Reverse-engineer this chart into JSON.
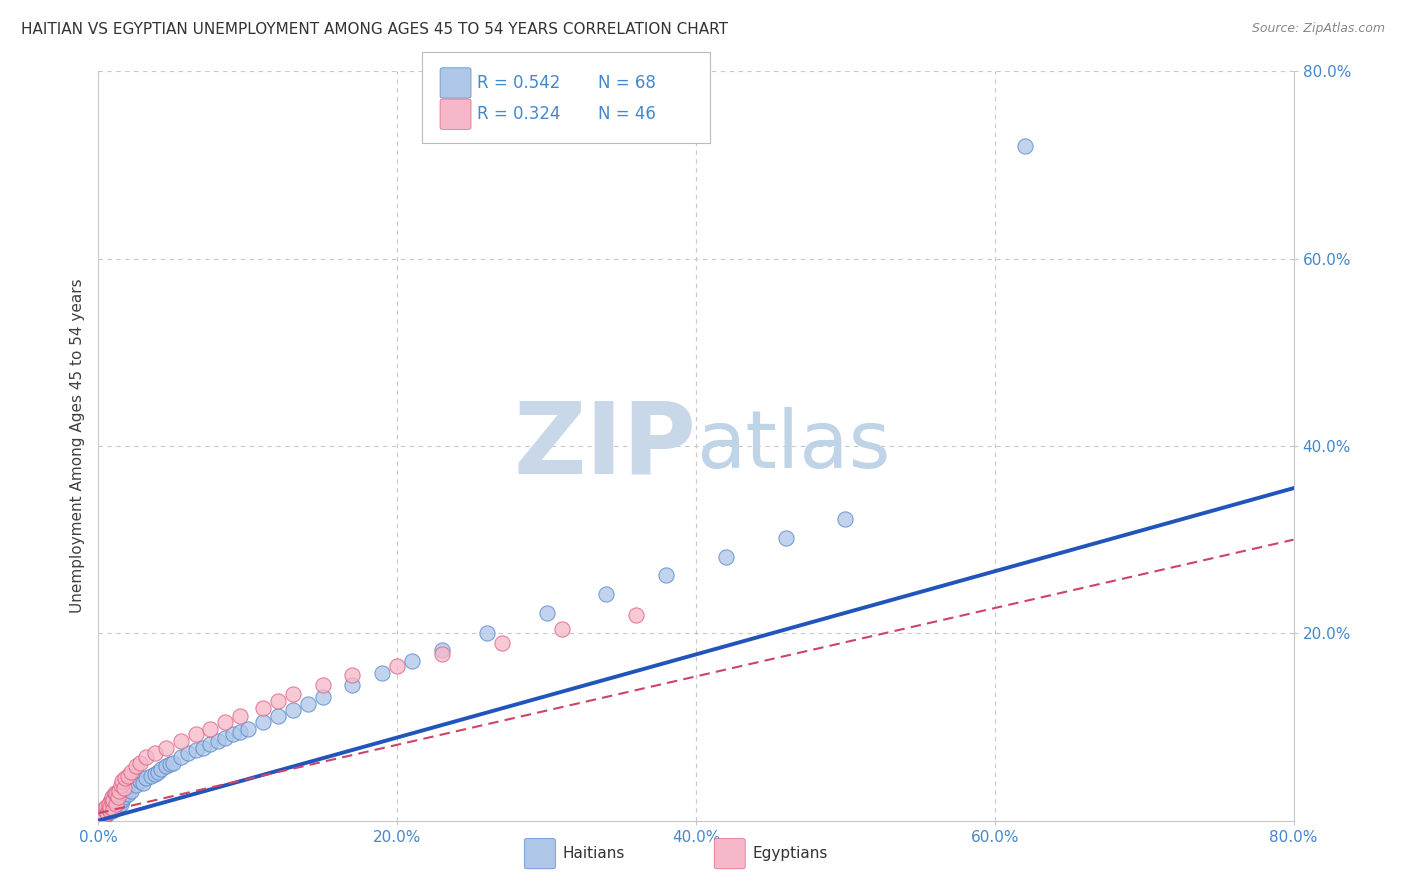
{
  "title": "HAITIAN VS EGYPTIAN UNEMPLOYMENT AMONG AGES 45 TO 54 YEARS CORRELATION CHART",
  "source": "Source: ZipAtlas.com",
  "ylabel": "Unemployment Among Ages 45 to 54 years",
  "xlim": [
    0,
    0.8
  ],
  "ylim": [
    0,
    0.8
  ],
  "xticks": [
    0.0,
    0.2,
    0.4,
    0.6,
    0.8
  ],
  "yticks": [
    0.2,
    0.4,
    0.6,
    0.8
  ],
  "xticklabels": [
    "0.0%",
    "20.0%",
    "40.0%",
    "60.0%",
    "80.0%"
  ],
  "yticklabels": [
    "20.0%",
    "40.0%",
    "60.0%",
    "80.0%"
  ],
  "haitian_R": 0.542,
  "haitian_N": 68,
  "egyptian_R": 0.324,
  "egyptian_N": 46,
  "haitian_color": "#aec6e8",
  "haitian_edge_color": "#5588cc",
  "haitian_line_color": "#2255bb",
  "egyptian_color": "#f5b8c8",
  "egyptian_edge_color": "#e06080",
  "egyptian_line_color": "#cc4466",
  "background_color": "#ffffff",
  "grid_color": "#c8c8c8",
  "title_color": "#333333",
  "tick_color": "#4488cc",
  "legend_R_color": "#4488cc",
  "watermark_ZIP_color": "#c8d8e8",
  "watermark_atlas_color": "#c0d4e8",
  "haitian_x": [
    0.002,
    0.003,
    0.004,
    0.005,
    0.005,
    0.006,
    0.007,
    0.007,
    0.008,
    0.008,
    0.009,
    0.009,
    0.01,
    0.01,
    0.011,
    0.011,
    0.012,
    0.012,
    0.013,
    0.013,
    0.014,
    0.014,
    0.015,
    0.015,
    0.016,
    0.017,
    0.018,
    0.019,
    0.02,
    0.022,
    0.025,
    0.028,
    0.03,
    0.032,
    0.035,
    0.038,
    0.04,
    0.042,
    0.045,
    0.048,
    0.05,
    0.055,
    0.06,
    0.065,
    0.07,
    0.075,
    0.08,
    0.085,
    0.09,
    0.095,
    0.1,
    0.11,
    0.12,
    0.13,
    0.14,
    0.15,
    0.17,
    0.19,
    0.21,
    0.23,
    0.26,
    0.3,
    0.34,
    0.38,
    0.42,
    0.46,
    0.5,
    0.62
  ],
  "haitian_y": [
    0.005,
    0.008,
    0.01,
    0.006,
    0.012,
    0.008,
    0.01,
    0.015,
    0.012,
    0.02,
    0.01,
    0.018,
    0.015,
    0.025,
    0.012,
    0.022,
    0.018,
    0.028,
    0.015,
    0.025,
    0.02,
    0.03,
    0.018,
    0.028,
    0.022,
    0.025,
    0.03,
    0.035,
    0.028,
    0.032,
    0.038,
    0.042,
    0.04,
    0.045,
    0.048,
    0.05,
    0.052,
    0.055,
    0.058,
    0.06,
    0.062,
    0.068,
    0.072,
    0.075,
    0.078,
    0.082,
    0.085,
    0.088,
    0.092,
    0.095,
    0.098,
    0.105,
    0.112,
    0.118,
    0.125,
    0.132,
    0.145,
    0.158,
    0.17,
    0.182,
    0.2,
    0.222,
    0.242,
    0.262,
    0.282,
    0.302,
    0.322,
    0.72
  ],
  "egyptian_x": [
    0.002,
    0.003,
    0.004,
    0.004,
    0.005,
    0.005,
    0.006,
    0.007,
    0.007,
    0.008,
    0.008,
    0.009,
    0.009,
    0.01,
    0.01,
    0.011,
    0.012,
    0.012,
    0.013,
    0.014,
    0.015,
    0.016,
    0.017,
    0.018,
    0.02,
    0.022,
    0.025,
    0.028,
    0.032,
    0.038,
    0.045,
    0.055,
    0.065,
    0.075,
    0.085,
    0.095,
    0.11,
    0.12,
    0.13,
    0.15,
    0.17,
    0.2,
    0.23,
    0.27,
    0.31,
    0.36
  ],
  "egyptian_y": [
    0.005,
    0.008,
    0.006,
    0.012,
    0.01,
    0.015,
    0.008,
    0.012,
    0.018,
    0.01,
    0.015,
    0.02,
    0.025,
    0.012,
    0.022,
    0.03,
    0.018,
    0.028,
    0.025,
    0.032,
    0.038,
    0.042,
    0.035,
    0.045,
    0.048,
    0.052,
    0.058,
    0.062,
    0.068,
    0.072,
    0.078,
    0.085,
    0.092,
    0.098,
    0.105,
    0.112,
    0.12,
    0.128,
    0.135,
    0.145,
    0.155,
    0.165,
    0.178,
    0.19,
    0.205,
    0.22
  ],
  "haitian_line_x": [
    0.0,
    0.8
  ],
  "haitian_line_y": [
    0.0,
    0.355
  ],
  "egyptian_line_x": [
    0.0,
    0.8
  ],
  "egyptian_line_y": [
    0.008,
    0.3
  ]
}
